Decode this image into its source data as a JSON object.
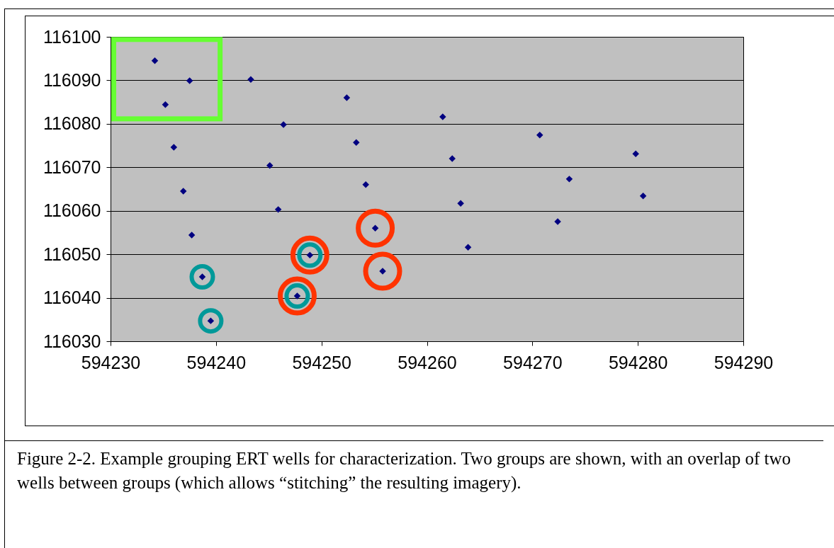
{
  "chart_data": {
    "type": "scatter",
    "marker": "diamond",
    "grid": "y",
    "x": [
      594234.2,
      594237.5,
      594235.2,
      594243.3,
      594236.0,
      594246.4,
      594252.4,
      594261.5,
      594236.9,
      594245.1,
      594253.3,
      594262.4,
      594270.7,
      594279.8,
      594237.7,
      594245.9,
      594254.2,
      594263.2,
      594273.5,
      594280.5,
      594238.7,
      594248.9,
      594255.1,
      594263.9,
      594272.4,
      594239.5,
      594247.7,
      594255.8
    ],
    "series": [
      {
        "color": "#000080",
        "values": [
          116094.5,
          116089.9,
          116084.4,
          116090.2,
          116074.6,
          116079.8,
          116086.0,
          116081.6,
          116064.5,
          116070.4,
          116075.7,
          116072.0,
          116077.4,
          116073.1,
          116054.4,
          116060.3,
          116066.0,
          116061.7,
          116067.3,
          116063.4,
          116044.8,
          116049.8,
          116056.0,
          116051.6,
          116057.5,
          116034.7,
          116040.4,
          116046.1
        ]
      }
    ],
    "xlim": [
      594230,
      594290
    ],
    "xticks": [
      594230,
      594240,
      594250,
      594260,
      594270,
      594280,
      594290
    ],
    "ylim": [
      116030,
      116100
    ],
    "yticks": [
      116030,
      116040,
      116050,
      116060,
      116070,
      116080,
      116090,
      116100
    ],
    "annotations": [
      "Figure 2-2.  Example grouping ERT wells for characterization. Two groups are shown, with an overlap of two wells between groups (which allows “stitching” the resulting imagery)."
    ]
  }
}
